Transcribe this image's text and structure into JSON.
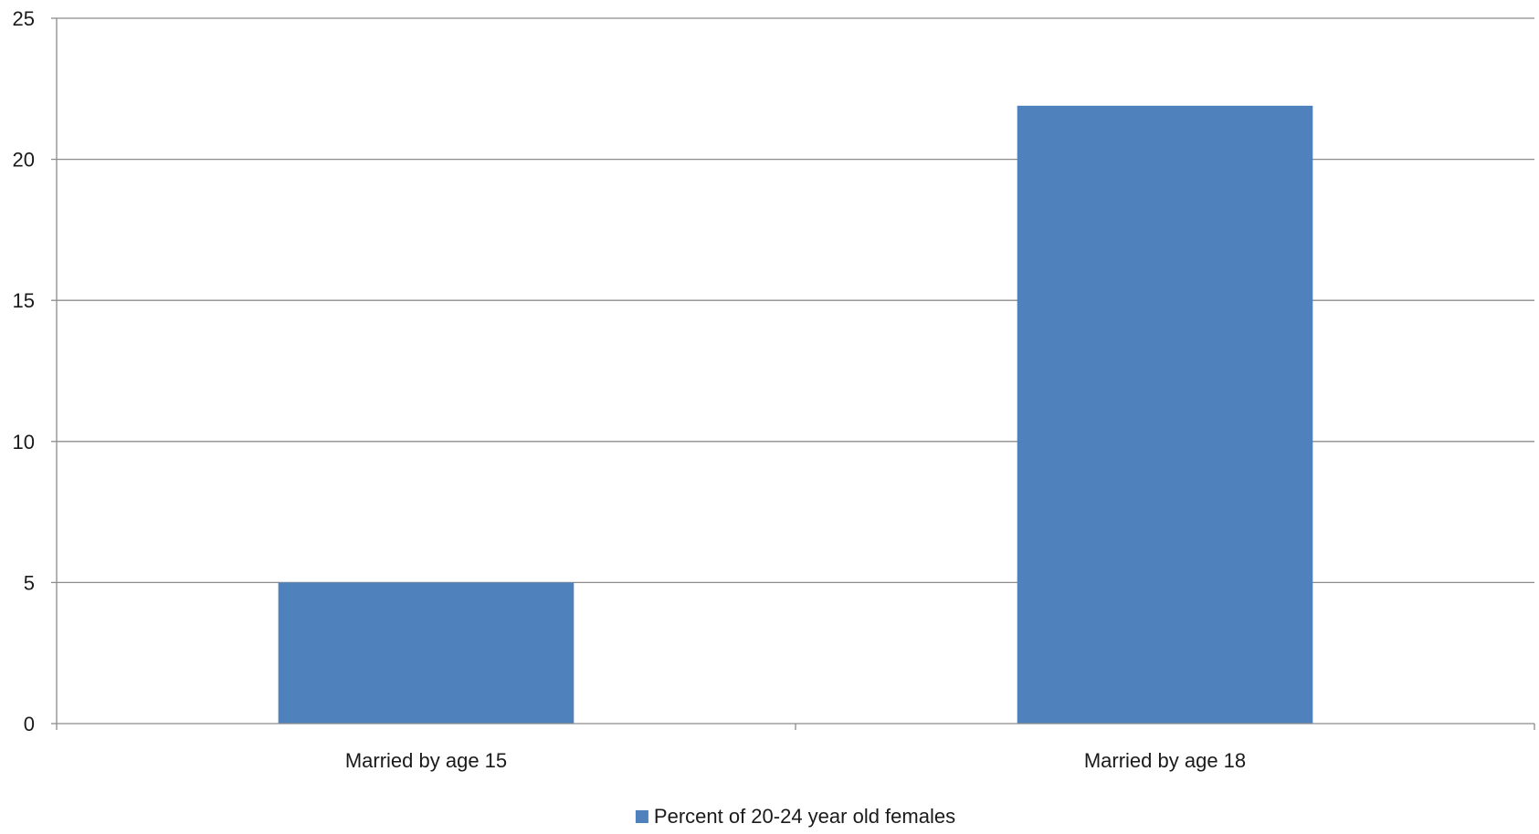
{
  "chart_data": {
    "type": "bar",
    "categories": [
      "Married by age 15",
      "Married by age 18"
    ],
    "series": [
      {
        "name": "Percent of 20-24 year old females",
        "values": [
          5,
          21.9
        ],
        "color": "#4f81bd"
      }
    ],
    "y_ticks": [
      "0",
      "5",
      "10",
      "15",
      "20",
      "25"
    ],
    "ylim": [
      0,
      25
    ],
    "grid": true,
    "legend_position": "bottom",
    "title": "",
    "xlabel": "",
    "ylabel": ""
  }
}
